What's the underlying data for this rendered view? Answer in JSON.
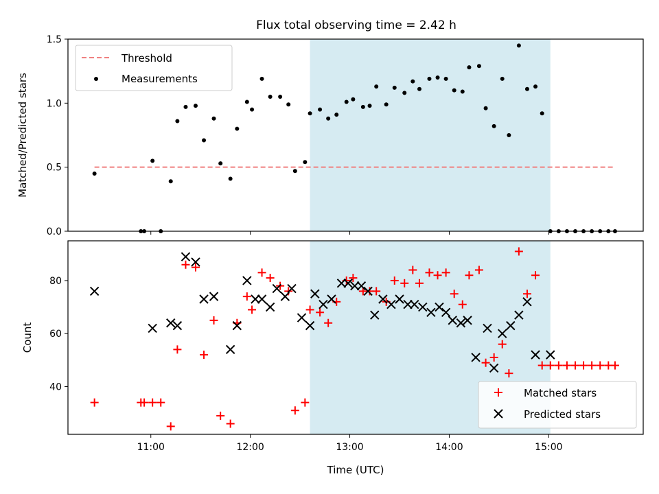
{
  "chart_data": [
    {
      "type": "scatter",
      "title": "Flux total observing time = 2.42 h",
      "xlabel": "",
      "ylabel": "Matched/Predicted stars",
      "xlim": [
        "10:10",
        "15:57"
      ],
      "ylim": [
        0,
        1.5
      ],
      "yticks": [
        "0.0",
        "0.5",
        "1.0",
        "1.5"
      ],
      "highlight_span": {
        "start": "12:36",
        "end": "15:01",
        "color": "#add8e6"
      },
      "series": [
        {
          "name": "Threshold",
          "style": "dashed-line",
          "color": "#f08080",
          "x": [
            "10:26",
            "15:40"
          ],
          "y": [
            0.5,
            0.5
          ]
        },
        {
          "name": "Measurements",
          "style": "dot",
          "color": "#000000",
          "x": [
            "10:26",
            "10:54",
            "10:56",
            "11:01",
            "11:06",
            "11:12",
            "11:16",
            "11:21",
            "11:27",
            "11:32",
            "11:38",
            "11:42",
            "11:48",
            "11:52",
            "11:58",
            "12:01",
            "12:07",
            "12:12",
            "12:18",
            "12:23",
            "12:27",
            "12:33",
            "12:36",
            "12:42",
            "12:47",
            "12:52",
            "12:58",
            "13:02",
            "13:08",
            "13:12",
            "13:16",
            "13:22",
            "13:27",
            "13:33",
            "13:38",
            "13:42",
            "13:48",
            "13:53",
            "13:58",
            "14:03",
            "14:08",
            "14:12",
            "14:18",
            "14:22",
            "14:27",
            "14:32",
            "14:36",
            "14:42",
            "14:47",
            "14:52",
            "14:56",
            "15:01",
            "15:06",
            "15:11",
            "15:16",
            "15:21",
            "15:26",
            "15:31",
            "15:36",
            "15:40"
          ],
          "y": [
            0.45,
            0,
            0,
            0.55,
            0,
            0.39,
            0.86,
            0.97,
            0.98,
            0.71,
            0.88,
            0.53,
            0.41,
            0.8,
            1.01,
            0.95,
            1.19,
            1.05,
            1.05,
            0.99,
            0.47,
            0.54,
            0.92,
            0.95,
            0.88,
            0.91,
            1.01,
            1.03,
            0.97,
            0.98,
            1.13,
            0.99,
            1.12,
            1.08,
            1.17,
            1.11,
            1.19,
            1.2,
            1.19,
            1.1,
            1.09,
            1.28,
            1.29,
            0.96,
            0.82,
            1.19,
            0.75,
            1.45,
            1.11,
            1.13,
            0.92,
            0,
            0,
            0,
            0,
            0,
            0,
            0,
            0,
            0
          ]
        }
      ]
    },
    {
      "type": "scatter",
      "title": "",
      "xlabel": "Time (UTC)",
      "ylabel": "Count",
      "xlim": [
        "10:10",
        "15:57"
      ],
      "ylim": [
        22,
        95
      ],
      "yticks": [
        "40",
        "60",
        "80"
      ],
      "xticks": [
        "11:00",
        "12:00",
        "13:00",
        "14:00",
        "15:00"
      ],
      "highlight_span": {
        "start": "12:36",
        "end": "15:01",
        "color": "#add8e6"
      },
      "legend_position": "lower right",
      "series": [
        {
          "name": "Matched stars",
          "marker": "plus",
          "color": "#ff0000",
          "x": [
            "10:26",
            "10:54",
            "10:56",
            "11:01",
            "11:06",
            "11:12",
            "11:16",
            "11:21",
            "11:27",
            "11:32",
            "11:38",
            "11:42",
            "11:48",
            "11:52",
            "11:58",
            "12:01",
            "12:07",
            "12:12",
            "12:18",
            "12:23",
            "12:27",
            "12:33",
            "12:36",
            "12:42",
            "12:47",
            "12:52",
            "12:58",
            "13:02",
            "13:08",
            "13:12",
            "13:16",
            "13:22",
            "13:27",
            "13:33",
            "13:38",
            "13:42",
            "13:48",
            "13:53",
            "13:58",
            "14:03",
            "14:08",
            "14:12",
            "14:18",
            "14:22",
            "14:27",
            "14:32",
            "14:36",
            "14:42",
            "14:47",
            "14:52",
            "14:56",
            "15:01",
            "15:06",
            "15:11",
            "15:16",
            "15:21",
            "15:26",
            "15:31",
            "15:36",
            "15:40"
          ],
          "y": [
            34,
            34,
            34,
            34,
            34,
            25,
            54,
            86,
            85,
            52,
            65,
            29,
            26,
            64,
            74,
            69,
            83,
            81,
            78,
            76,
            31,
            34,
            69,
            68,
            64,
            72,
            80,
            81,
            76,
            76,
            76,
            72,
            80,
            79,
            84,
            79,
            83,
            82,
            83,
            75,
            71,
            82,
            84,
            49,
            51,
            56,
            45,
            91,
            75,
            82,
            48,
            48,
            48,
            48,
            48,
            48,
            48,
            48,
            48,
            48
          ]
        },
        {
          "name": "Predicted stars",
          "marker": "x",
          "color": "#000000",
          "x": [
            "10:26",
            "11:01",
            "11:12",
            "11:16",
            "11:21",
            "11:27",
            "11:32",
            "11:38",
            "11:48",
            "11:52",
            "11:58",
            "12:03",
            "12:07",
            "12:12",
            "12:16",
            "12:21",
            "12:25",
            "12:31",
            "12:36",
            "12:39",
            "12:44",
            "12:49",
            "12:55",
            "12:59",
            "13:03",
            "13:07",
            "13:11",
            "13:15",
            "13:20",
            "13:25",
            "13:30",
            "13:35",
            "13:39",
            "13:44",
            "13:49",
            "13:54",
            "13:58",
            "14:02",
            "14:07",
            "14:11",
            "14:16",
            "14:23",
            "14:27",
            "14:32",
            "14:37",
            "14:42",
            "14:47",
            "14:52",
            "15:01"
          ],
          "y": [
            76,
            62,
            64,
            63,
            89,
            87,
            73,
            74,
            54,
            63,
            80,
            73,
            73,
            70,
            77,
            74,
            77,
            66,
            63,
            75,
            71,
            73,
            79,
            79,
            78,
            78,
            76,
            67,
            73,
            71,
            73,
            71,
            71,
            70,
            68,
            70,
            68,
            65,
            64,
            65,
            51,
            62,
            47,
            60,
            63,
            67,
            72,
            52,
            52
          ]
        }
      ]
    }
  ]
}
